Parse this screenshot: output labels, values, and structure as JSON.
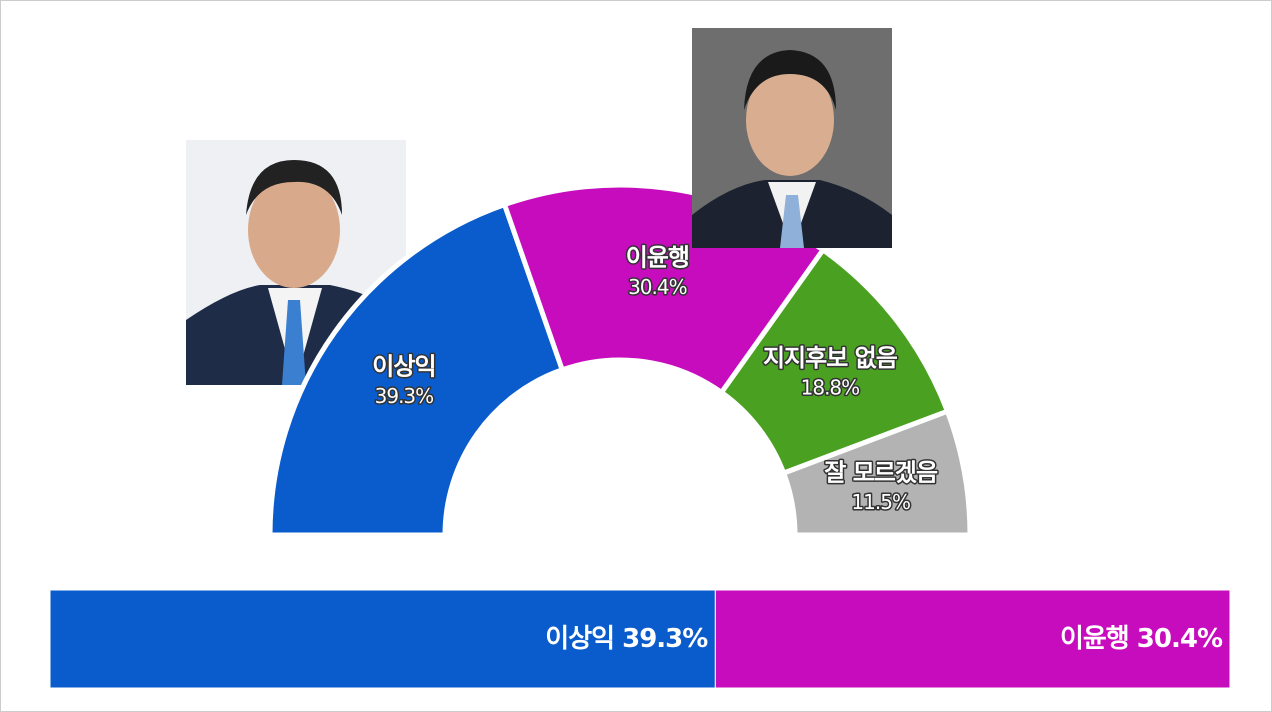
{
  "chart_data": [
    {
      "type": "half-donut",
      "categories": [
        "이상익",
        "이윤행",
        "지지후보 없음",
        "잘 모르겠음"
      ],
      "values": [
        39.3,
        30.4,
        18.8,
        11.5
      ],
      "value_labels": [
        "39.3%",
        "30.4%",
        "18.8%",
        "11.5%"
      ],
      "colors": [
        "#0a5ccc",
        "#c70cbd",
        "#4aa020",
        "#b3b3b3"
      ]
    },
    {
      "type": "stacked-bar",
      "categories": [
        "이상익",
        "이윤행"
      ],
      "values": [
        39.3,
        30.4
      ],
      "value_labels": [
        "39.3%",
        "30.4%"
      ],
      "colors": [
        "#0a5ccc",
        "#c70cbd"
      ]
    }
  ]
}
